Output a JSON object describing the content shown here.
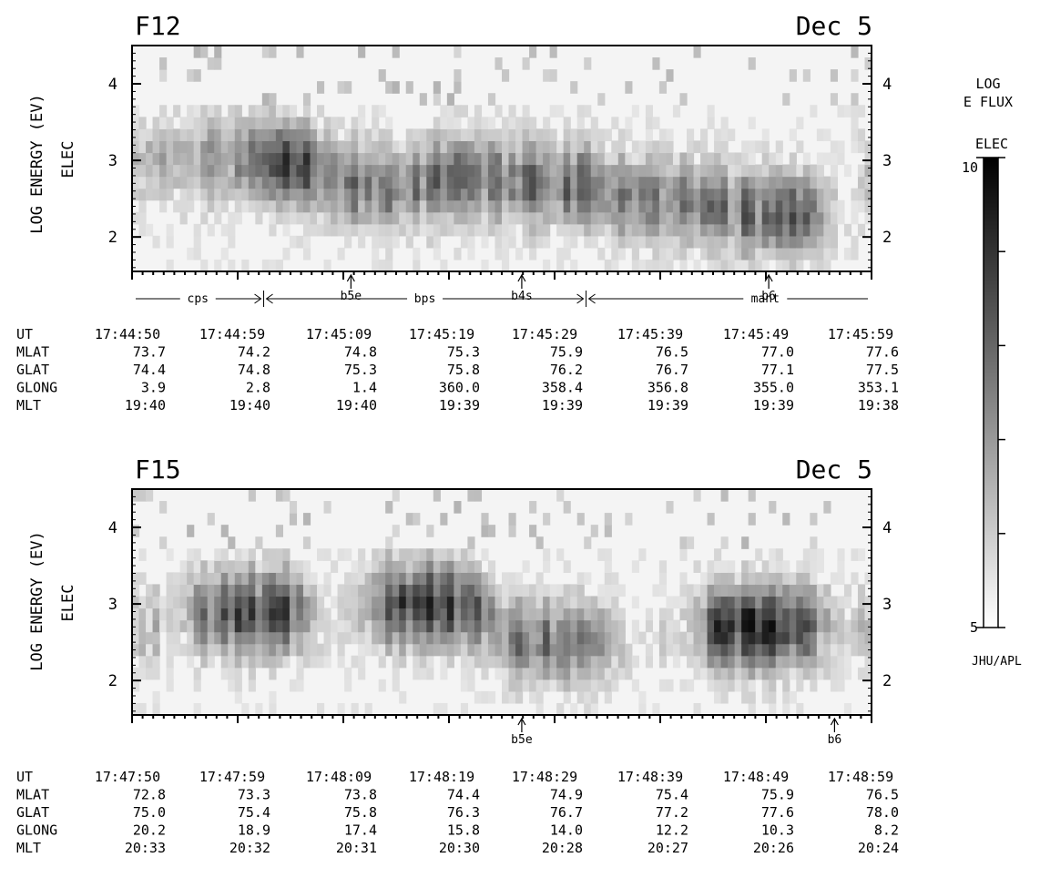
{
  "chart_data": [
    {
      "type": "heatmap",
      "title": "F12",
      "date": "Dec 5",
      "ylabel": "LOG ENERGY (EV)",
      "ylabel2": "ELEC",
      "ylim": [
        1.55,
        4.5
      ],
      "yticks": [
        "2",
        "3",
        "4"
      ],
      "grid": false,
      "boundaries": {
        "arrows": [
          {
            "label": "b5e",
            "x": 0.296
          },
          {
            "label": "b4s",
            "x": 0.527
          },
          {
            "label": "b6",
            "x": 0.861
          }
        ],
        "regions": [
          {
            "label": "cps",
            "from": 0.0,
            "to": 0.178
          },
          {
            "label": "bps",
            "from": 0.178,
            "to": 0.614
          },
          {
            "label": "mant",
            "from": 0.614,
            "to": 1.0
          }
        ]
      },
      "ephemeris": {
        "rows": [
          "UT",
          "MLAT",
          "GLAT",
          "GLONG",
          "MLT"
        ],
        "columns": [
          [
            "17:44:50",
            "73.7",
            "74.4",
            "3.9",
            "19:40"
          ],
          [
            "17:44:59",
            "74.2",
            "74.8",
            "2.8",
            "19:40"
          ],
          [
            "17:45:09",
            "74.8",
            "75.3",
            "1.4",
            "19:40"
          ],
          [
            "17:45:19",
            "75.3",
            "75.8",
            "360.0",
            "19:39"
          ],
          [
            "17:45:29",
            "75.9",
            "76.2",
            "358.4",
            "19:39"
          ],
          [
            "17:45:39",
            "76.5",
            "76.7",
            "356.8",
            "19:39"
          ],
          [
            "17:45:49",
            "77.0",
            "77.1",
            "355.0",
            "19:39"
          ],
          [
            "17:45:59",
            "77.6",
            "77.5",
            "353.1",
            "19:38"
          ]
        ]
      },
      "spectrogram_profile": [
        {
          "x": 0.05,
          "peak_log_ev": 3.0,
          "intensity": 0.35
        },
        {
          "x": 0.22,
          "peak_log_ev": 3.0,
          "intensity": 0.75
        },
        {
          "x": 0.32,
          "peak_log_ev": 2.6,
          "intensity": 0.5
        },
        {
          "x": 0.47,
          "peak_log_ev": 2.8,
          "intensity": 0.6
        },
        {
          "x": 0.55,
          "peak_log_ev": 2.7,
          "intensity": 0.6
        },
        {
          "x": 0.72,
          "peak_log_ev": 2.5,
          "intensity": 0.55
        },
        {
          "x": 0.86,
          "peak_log_ev": 2.3,
          "intensity": 0.6
        }
      ]
    },
    {
      "type": "heatmap",
      "title": "F15",
      "date": "Dec 5",
      "ylabel": "LOG ENERGY (EV)",
      "ylabel2": "ELEC",
      "ylim": [
        1.55,
        4.5
      ],
      "yticks": [
        "2",
        "3",
        "4"
      ],
      "grid": false,
      "boundaries": {
        "arrows": [
          {
            "label": "b5e",
            "x": 0.527
          },
          {
            "label": "b6",
            "x": 0.95
          }
        ]
      },
      "ephemeris": {
        "rows": [
          "UT",
          "MLAT",
          "GLAT",
          "GLONG",
          "MLT"
        ],
        "columns": [
          [
            "17:47:50",
            "72.8",
            "75.0",
            "20.2",
            "20:33"
          ],
          [
            "17:47:59",
            "73.3",
            "75.4",
            "18.9",
            "20:32"
          ],
          [
            "17:48:09",
            "73.8",
            "75.8",
            "17.4",
            "20:31"
          ],
          [
            "17:48:19",
            "74.4",
            "76.3",
            "15.8",
            "20:30"
          ],
          [
            "17:48:29",
            "74.9",
            "76.7",
            "14.0",
            "20:28"
          ],
          [
            "17:48:39",
            "75.4",
            "77.2",
            "12.2",
            "20:27"
          ],
          [
            "17:48:49",
            "75.9",
            "77.6",
            "10.3",
            "20:26"
          ],
          [
            "17:48:59",
            "76.5",
            "78.0",
            "8.2",
            "20:24"
          ]
        ]
      },
      "spectrogram_profile": [
        {
          "x": 0.16,
          "peak_log_ev": 2.9,
          "intensity": 0.7
        },
        {
          "x": 0.4,
          "peak_log_ev": 3.0,
          "intensity": 0.8
        },
        {
          "x": 0.58,
          "peak_log_ev": 2.5,
          "intensity": 0.55
        },
        {
          "x": 0.85,
          "peak_log_ev": 2.7,
          "intensity": 0.9
        }
      ]
    }
  ],
  "colorbar": {
    "title_line1": "LOG",
    "title_line2": "E FLUX",
    "title_line3": "ELEC",
    "max_label": "10",
    "min_label": "5",
    "range": [
      5,
      10
    ],
    "credit": "JHU/APL"
  },
  "colors": {
    "low": "#ffffff",
    "high": "#000000",
    "background": "#f4f4f4"
  }
}
